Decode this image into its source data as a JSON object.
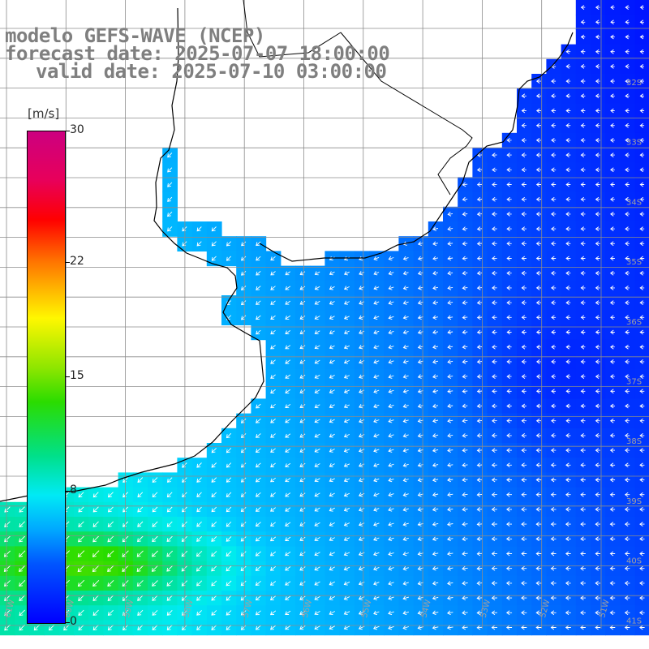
{
  "header": {
    "line1": "modelo GEFS-WAVE (NCEP)",
    "line2": "forecast date: 2025-07-07 18:00:00",
    "line3": "valid date: 2025-07-10 03:00:00"
  },
  "legend": {
    "units": "[m/s]",
    "ticks": [
      {
        "label": "30",
        "value": 30
      },
      {
        "label": "22",
        "value": 22
      },
      {
        "label": "15",
        "value": 15
      },
      {
        "label": "8",
        "value": 8
      },
      {
        "label": "0",
        "value": 0
      }
    ],
    "min": 0,
    "max": 30
  },
  "map": {
    "lat_labels": [
      "32S",
      "33S",
      "34S",
      "35S",
      "36S",
      "37S",
      "38S",
      "39S",
      "40S",
      "41S"
    ],
    "lon_labels": [
      "61W",
      "60W",
      "59W",
      "58W",
      "57W",
      "56W",
      "55W",
      "54W",
      "53W",
      "52W",
      "51W"
    ],
    "colors": {
      "land": "#ffffff",
      "grid": "#8c8c8c",
      "coast": "#000000",
      "arrow": "#ffffff",
      "label": "#a0a0a0"
    }
  }
}
